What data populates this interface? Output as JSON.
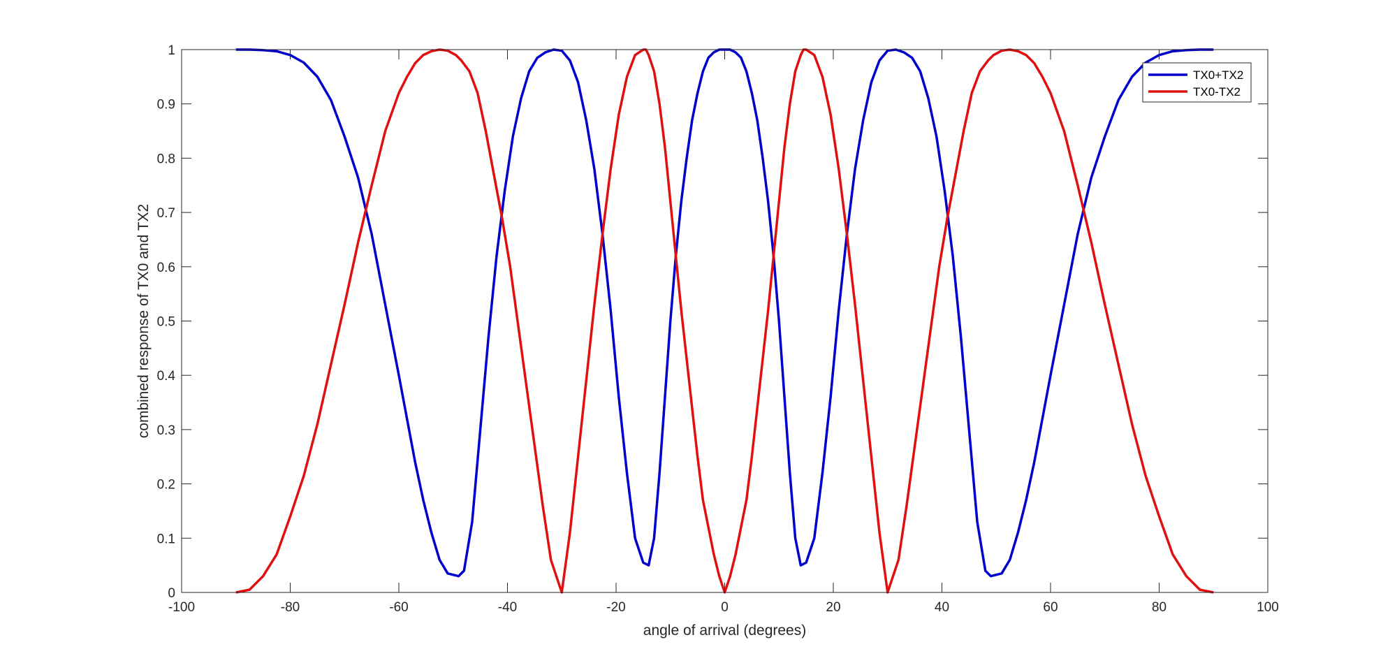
{
  "chart_data": {
    "type": "line",
    "xlabel": "angle of arrival (degrees)",
    "ylabel": "combined response of TX0 and TX2",
    "xlim": [
      -100,
      100
    ],
    "ylim": [
      0,
      1
    ],
    "x_ticks": [
      "-100",
      "-80",
      "-60",
      "-40",
      "-20",
      "0",
      "20",
      "40",
      "60",
      "80",
      "100"
    ],
    "y_ticks": [
      "0",
      "0.1",
      "0.2",
      "0.3",
      "0.4",
      "0.5",
      "0.6",
      "0.7",
      "0.8",
      "0.9",
      "1"
    ],
    "grid": false,
    "box": true,
    "legend_position": "top-right",
    "series": [
      {
        "name": "TX0+TX2",
        "color": "#0000cc",
        "x": [
          -90,
          -87.5,
          -85,
          -82.5,
          -80,
          -77.5,
          -75,
          -72.5,
          -70,
          -67.5,
          -65,
          -62.5,
          -60,
          -58.5,
          -57,
          -55.5,
          -54,
          -52.5,
          -51,
          -49,
          -48,
          -46.5,
          -45,
          -43.5,
          -42,
          -40.5,
          -39,
          -37.5,
          -36,
          -34.5,
          -33,
          -31.5,
          -30,
          -28.5,
          -27,
          -25.5,
          -24,
          -22.5,
          -21,
          -19.5,
          -18,
          -16.5,
          -15,
          -14,
          -13,
          -12,
          -11,
          -10,
          -9,
          -8,
          -7,
          -6,
          -5,
          -4,
          -3,
          -2,
          -1,
          0,
          1,
          2,
          3,
          4,
          5,
          6,
          7,
          8,
          9,
          10,
          11,
          12,
          13,
          14,
          15,
          16.5,
          18,
          19.5,
          21,
          22.5,
          24,
          25.5,
          27,
          28.5,
          30,
          31.5,
          33,
          34.5,
          36,
          37.5,
          39,
          40.5,
          42,
          43.5,
          45,
          46.5,
          48,
          49,
          51,
          52.5,
          54,
          55.5,
          57,
          58.5,
          60,
          62.5,
          65,
          67.5,
          70,
          72.5,
          75,
          77.5,
          80,
          82.5,
          85,
          87.5,
          90
        ],
        "y": [
          1.0,
          1.0,
          0.999,
          0.997,
          0.99,
          0.976,
          0.95,
          0.907,
          0.84,
          0.764,
          0.66,
          0.53,
          0.4,
          0.32,
          0.24,
          0.17,
          0.11,
          0.06,
          0.035,
          0.03,
          0.04,
          0.13,
          0.3,
          0.47,
          0.62,
          0.74,
          0.84,
          0.91,
          0.96,
          0.985,
          0.995,
          1.0,
          0.998,
          0.98,
          0.94,
          0.87,
          0.78,
          0.66,
          0.52,
          0.36,
          0.22,
          0.1,
          0.055,
          0.05,
          0.1,
          0.22,
          0.36,
          0.5,
          0.62,
          0.72,
          0.8,
          0.87,
          0.92,
          0.96,
          0.985,
          0.995,
          1.0,
          1.0,
          1.0,
          0.995,
          0.985,
          0.96,
          0.92,
          0.87,
          0.8,
          0.72,
          0.62,
          0.5,
          0.36,
          0.22,
          0.1,
          0.05,
          0.055,
          0.1,
          0.22,
          0.36,
          0.52,
          0.66,
          0.78,
          0.87,
          0.94,
          0.98,
          0.998,
          1.0,
          0.995,
          0.985,
          0.96,
          0.91,
          0.84,
          0.74,
          0.62,
          0.47,
          0.3,
          0.13,
          0.04,
          0.03,
          0.035,
          0.06,
          0.11,
          0.17,
          0.24,
          0.32,
          0.4,
          0.53,
          0.66,
          0.764,
          0.84,
          0.907,
          0.95,
          0.976,
          0.99,
          0.997,
          0.999,
          1.0,
          1.0
        ]
      },
      {
        "name": "TX0-TX2",
        "color": "#e01010",
        "x": [
          -90,
          -87.5,
          -85,
          -82.5,
          -80,
          -77.5,
          -75,
          -72.5,
          -70,
          -67.5,
          -65,
          -62.5,
          -60,
          -58.5,
          -57,
          -55.5,
          -54,
          -52.5,
          -51,
          -49.5,
          -48.5,
          -47,
          -45.5,
          -44,
          -42.5,
          -41,
          -39.5,
          -38,
          -36.5,
          -35,
          -33.5,
          -32,
          -30,
          -28.5,
          -27,
          -25.5,
          -24,
          -22.5,
          -21,
          -19.5,
          -18,
          -16.5,
          -15,
          -14.5,
          -14,
          -13,
          -12,
          -11,
          -10,
          -9,
          -8,
          -7,
          -6,
          -5,
          -4,
          -3,
          -2,
          -1,
          0,
          1,
          2,
          3,
          4,
          5,
          6,
          7,
          8,
          9,
          10,
          11,
          12,
          13,
          14,
          14.5,
          15,
          16.5,
          18,
          19.5,
          21,
          22.5,
          24,
          25.5,
          27,
          28.5,
          30,
          32,
          33.5,
          35,
          36.5,
          38,
          39.5,
          41,
          42.5,
          44,
          45.5,
          47,
          48.5,
          49.5,
          51,
          52.5,
          54,
          55.5,
          57,
          58.5,
          60,
          62.5,
          65,
          67.5,
          70,
          72.5,
          75,
          77.5,
          80,
          82.5,
          85,
          87.5,
          90
        ],
        "y": [
          0.0,
          0.005,
          0.03,
          0.07,
          0.14,
          0.215,
          0.31,
          0.42,
          0.53,
          0.645,
          0.75,
          0.85,
          0.92,
          0.95,
          0.975,
          0.99,
          0.997,
          1.0,
          0.998,
          0.99,
          0.98,
          0.96,
          0.92,
          0.85,
          0.77,
          0.69,
          0.6,
          0.49,
          0.38,
          0.27,
          0.16,
          0.06,
          0.0,
          0.11,
          0.25,
          0.39,
          0.53,
          0.66,
          0.78,
          0.88,
          0.95,
          0.99,
          1.0,
          1.0,
          0.99,
          0.96,
          0.9,
          0.82,
          0.72,
          0.62,
          0.52,
          0.43,
          0.34,
          0.25,
          0.17,
          0.12,
          0.07,
          0.03,
          0.0,
          0.03,
          0.07,
          0.12,
          0.17,
          0.25,
          0.34,
          0.43,
          0.52,
          0.62,
          0.72,
          0.82,
          0.9,
          0.96,
          0.99,
          1.0,
          1.0,
          0.99,
          0.95,
          0.88,
          0.78,
          0.66,
          0.53,
          0.39,
          0.25,
          0.11,
          0.0,
          0.06,
          0.16,
          0.27,
          0.38,
          0.49,
          0.6,
          0.69,
          0.77,
          0.85,
          0.92,
          0.96,
          0.98,
          0.99,
          0.998,
          1.0,
          0.997,
          0.99,
          0.975,
          0.95,
          0.92,
          0.85,
          0.75,
          0.645,
          0.53,
          0.42,
          0.31,
          0.215,
          0.14,
          0.07,
          0.03,
          0.005,
          0.0
        ]
      }
    ]
  }
}
